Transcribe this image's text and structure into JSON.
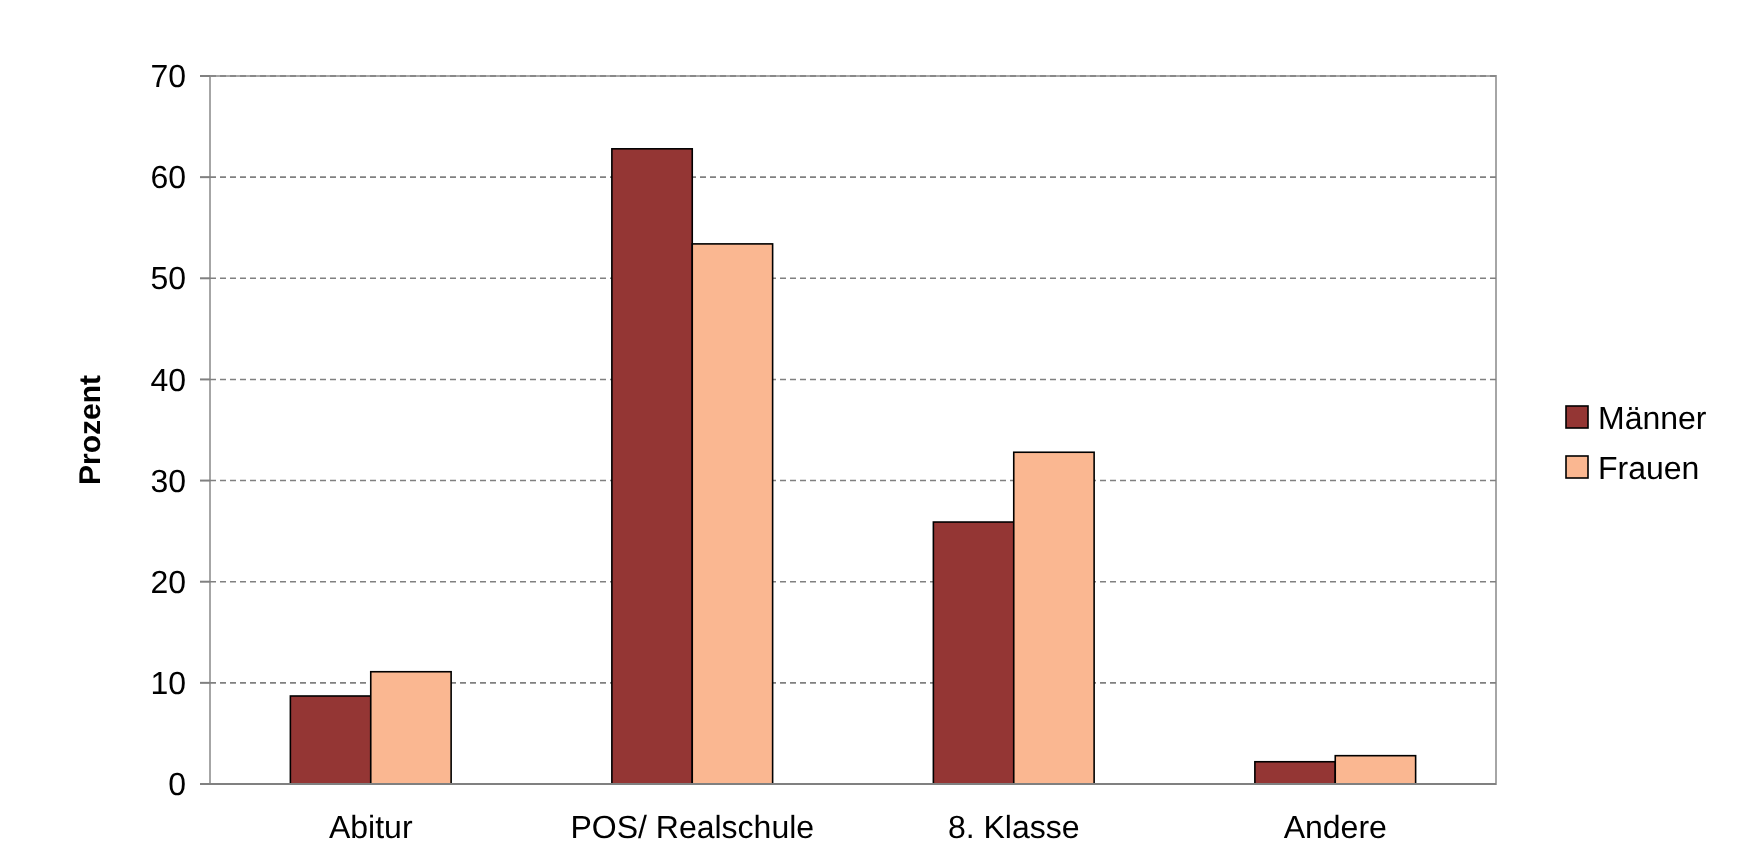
{
  "chart_data": {
    "type": "bar",
    "ylabel": "Prozent",
    "categories": [
      "Abitur",
      "POS/ Realschule",
      "8. Klasse",
      "Andere"
    ],
    "series": [
      {
        "name": "Männer",
        "color": "#943634",
        "values": [
          8.7,
          62.8,
          25.9,
          2.2
        ]
      },
      {
        "name": "Frauen",
        "color": "#fab791",
        "values": [
          11.1,
          53.4,
          32.8,
          2.8
        ]
      }
    ],
    "ylim": [
      0,
      70
    ],
    "yticks": [
      0,
      10,
      20,
      30,
      40,
      50,
      60,
      70
    ],
    "grid": "y",
    "legend": "right"
  }
}
